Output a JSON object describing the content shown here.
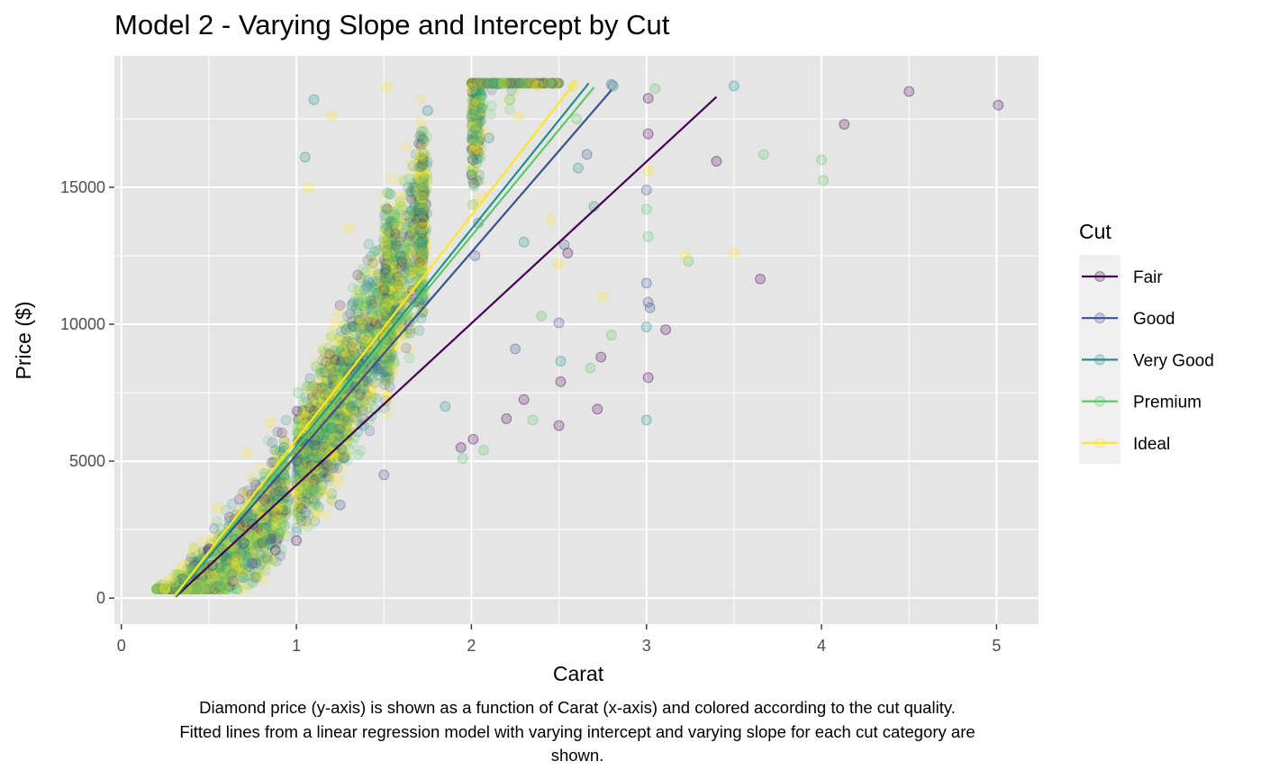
{
  "chart_data": {
    "type": "scatter",
    "title": "Model 2 - Varying Slope and Intercept by Cut",
    "xlabel": "Carat",
    "ylabel": "Price ($)",
    "xlim": [
      -0.04,
      5.24
    ],
    "ylim": [
      -950,
      19800
    ],
    "x_ticks": [
      0,
      1,
      2,
      3,
      4,
      5
    ],
    "y_ticks": [
      0,
      5000,
      10000,
      15000
    ],
    "x_tick_labels": [
      "0",
      "1",
      "2",
      "3",
      "4",
      "5"
    ],
    "y_tick_labels": [
      "0",
      "5000",
      "10000",
      "15000"
    ],
    "grid": true,
    "legend": {
      "title": "Cut",
      "position": "right",
      "entries": [
        "Fair",
        "Good",
        "Very Good",
        "Premium",
        "Ideal"
      ]
    },
    "caption": [
      "Diamond price (y-axis) is shown as a function of Carat (x-axis) and colored according to the cut quality.",
      "Fitted lines from a linear regression model with varying intercept and varying slope for each cut category are",
      "shown."
    ],
    "colors": {
      "Fair": "#440154",
      "Good": "#3b528b",
      "Very Good": "#21908c",
      "Premium": "#5dc863",
      "Ideal": "#fde725",
      "panel_background": "#e5e5e5",
      "grid": "#ffffff",
      "legend_background": "#f0f0f0"
    },
    "fitted_lines": [
      {
        "name": "Fair",
        "x": [
          0.31,
          3.4
        ],
        "y": [
          50,
          18300
        ]
      },
      {
        "name": "Good",
        "x": [
          0.3,
          2.8
        ],
        "y": [
          50,
          18550
        ]
      },
      {
        "name": "Very Good",
        "x": [
          0.31,
          2.67
        ],
        "y": [
          50,
          18800
        ]
      },
      {
        "name": "Premium",
        "x": [
          0.3,
          2.7
        ],
        "y": [
          50,
          18650
        ]
      },
      {
        "name": "Ideal",
        "x": [
          0.3,
          2.6
        ],
        "y": [
          50,
          18900
        ]
      }
    ],
    "points": {
      "Fair": [
        [
          3.4,
          15950
        ],
        [
          3.65,
          11650
        ],
        [
          4.13,
          17300
        ],
        [
          4.5,
          18500
        ],
        [
          5.01,
          18000
        ],
        [
          2.5,
          6300
        ],
        [
          2.72,
          6900
        ],
        [
          2.2,
          6550
        ],
        [
          2.3,
          7250
        ],
        [
          2.74,
          8800
        ],
        [
          3.01,
          16950
        ],
        [
          3.01,
          8050
        ],
        [
          3.01,
          18250
        ],
        [
          3.11,
          9800
        ],
        [
          2.55,
          12600
        ],
        [
          2.51,
          7900
        ],
        [
          1.94,
          5500
        ],
        [
          2.01,
          5800
        ],
        [
          0.5,
          1800
        ],
        [
          1.0,
          2100
        ],
        [
          0.88,
          1750
        ]
      ],
      "Good": [
        [
          2.8,
          18750
        ],
        [
          3.0,
          14900
        ],
        [
          3.0,
          11500
        ],
        [
          3.01,
          10800
        ],
        [
          3.02,
          10600
        ],
        [
          2.66,
          16200
        ],
        [
          2.5,
          10050
        ],
        [
          2.53,
          12900
        ],
        [
          2.01,
          16000
        ],
        [
          2.02,
          12500
        ],
        [
          1.51,
          12000
        ],
        [
          1.5,
          4500
        ],
        [
          1.0,
          5000
        ],
        [
          0.9,
          3900
        ],
        [
          0.7,
          2000
        ],
        [
          0.52,
          1200
        ],
        [
          0.35,
          700
        ],
        [
          0.75,
          2700
        ],
        [
          1.25,
          3400
        ],
        [
          2.25,
          9100
        ]
      ],
      "Very Good": [
        [
          2.81,
          18700
        ],
        [
          2.61,
          15700
        ],
        [
          2.7,
          14300
        ],
        [
          3.0,
          9900
        ],
        [
          3.0,
          6500
        ],
        [
          3.5,
          18700
        ],
        [
          2.51,
          8650
        ],
        [
          2.3,
          13000
        ],
        [
          2.1,
          16800
        ],
        [
          1.75,
          17800
        ],
        [
          1.6,
          12500
        ],
        [
          1.05,
          16100
        ],
        [
          1.1,
          18200
        ],
        [
          0.93,
          5500
        ],
        [
          0.7,
          2900
        ],
        [
          0.45,
          1200
        ],
        [
          0.33,
          500
        ],
        [
          1.2,
          6200
        ],
        [
          2.04,
          13700
        ],
        [
          1.85,
          7000
        ]
      ],
      "Premium": [
        [
          4.01,
          15250
        ],
        [
          4.0,
          16000
        ],
        [
          3.24,
          12300
        ],
        [
          3.05,
          18600
        ],
        [
          3.67,
          16200
        ],
        [
          3.01,
          13200
        ],
        [
          3.0,
          14200
        ],
        [
          2.68,
          8400
        ],
        [
          2.4,
          10300
        ],
        [
          2.6,
          17500
        ],
        [
          2.22,
          18200
        ],
        [
          1.7,
          11200
        ],
        [
          1.52,
          14800
        ],
        [
          1.01,
          7500
        ],
        [
          0.9,
          4500
        ],
        [
          0.6,
          2100
        ],
        [
          0.4,
          1000
        ],
        [
          0.27,
          450
        ],
        [
          1.3,
          9900
        ],
        [
          1.95,
          5100
        ],
        [
          2.07,
          5400
        ],
        [
          2.8,
          9600
        ],
        [
          2.35,
          6500
        ],
        [
          1.45,
          6900
        ]
      ],
      "Ideal": [
        [
          2.58,
          18700
        ],
        [
          2.38,
          18700
        ],
        [
          2.5,
          12200
        ],
        [
          3.5,
          12600
        ],
        [
          3.22,
          12500
        ],
        [
          3.01,
          15600
        ],
        [
          2.75,
          11000
        ],
        [
          2.0,
          18600
        ],
        [
          1.52,
          18650
        ],
        [
          1.2,
          17600
        ],
        [
          1.07,
          15000
        ],
        [
          0.72,
          5300
        ],
        [
          0.55,
          3300
        ],
        [
          0.41,
          1700
        ],
        [
          0.3,
          600
        ],
        [
          0.25,
          400
        ],
        [
          0.85,
          6400
        ],
        [
          1.3,
          13500
        ],
        [
          1.4,
          9500
        ],
        [
          1.71,
          16200
        ],
        [
          2.27,
          17600
        ],
        [
          2.45,
          13800
        ]
      ]
    }
  }
}
